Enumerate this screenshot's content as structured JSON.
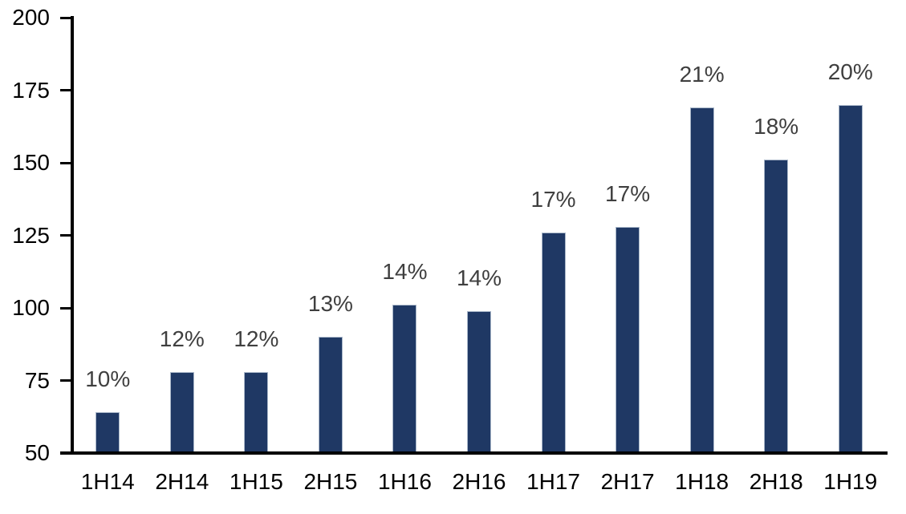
{
  "chart_data": {
    "type": "bar",
    "title": "",
    "xlabel": "",
    "ylabel": "",
    "categories": [
      "1H14",
      "2H14",
      "1H15",
      "2H15",
      "1H16",
      "2H16",
      "1H17",
      "2H17",
      "1H18",
      "2H18",
      "1H19"
    ],
    "values": [
      64,
      78,
      78,
      90,
      101,
      99,
      126,
      128,
      169,
      151,
      170
    ],
    "bar_labels": [
      "10%",
      "12%",
      "12%",
      "13%",
      "14%",
      "14%",
      "17%",
      "17%",
      "21%",
      "18%",
      "20%"
    ],
    "ylim": [
      50,
      200
    ],
    "yticks": [
      50,
      75,
      100,
      125,
      150,
      175,
      200
    ],
    "grid": false,
    "legend": false,
    "colors": {
      "bar_fill": "#1F3864",
      "bar_border": "#A9B7C9",
      "data_label": "#3F3F3F",
      "axis": "#000000",
      "background": "#FFFFFF"
    }
  }
}
